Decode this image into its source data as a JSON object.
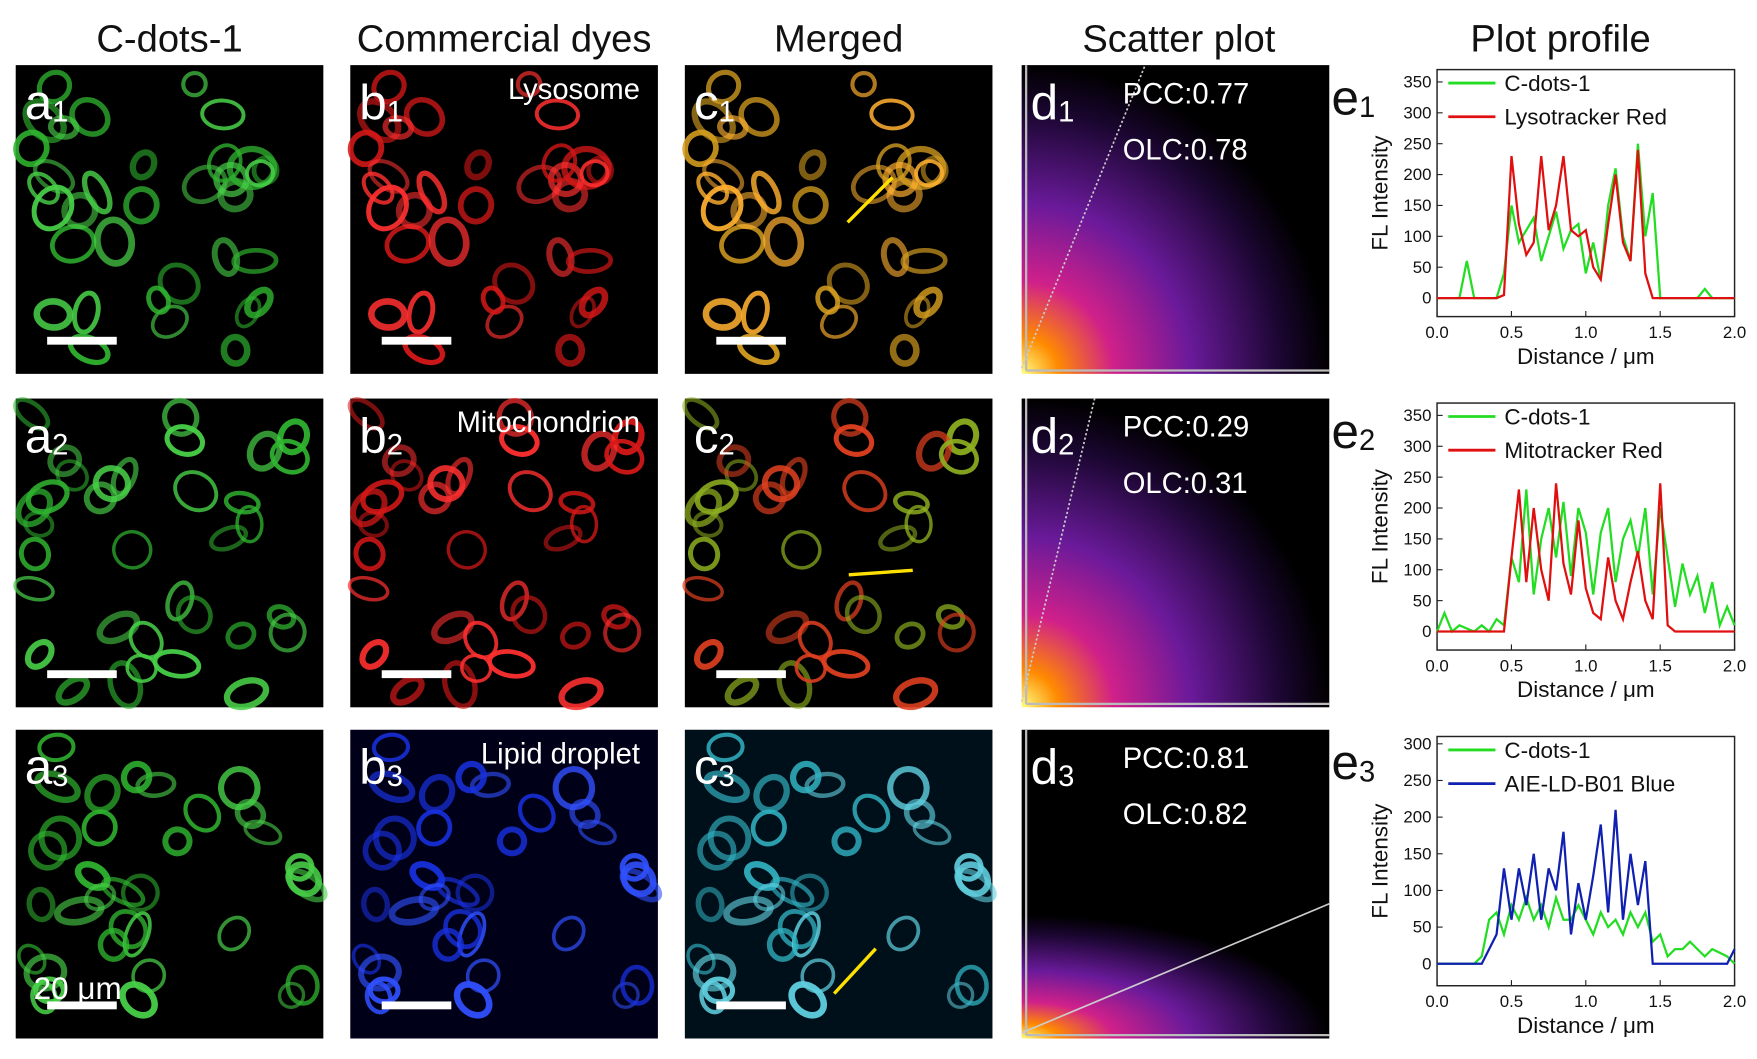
{
  "columns": [
    "C-dots-1",
    "Commercial dyes",
    "Merged",
    "Scatter plot",
    "Plot profile"
  ],
  "scale_bar": "20 μm",
  "rows": [
    {
      "labels": [
        [
          "a",
          "1"
        ],
        [
          "b",
          "1"
        ],
        [
          "c",
          "1"
        ],
        [
          "d",
          "1"
        ],
        [
          "e",
          "1"
        ]
      ],
      "organelle": "Lysosome",
      "pcc": "PCC:0.77",
      "olc": "OLC:0.78"
    },
    {
      "labels": [
        [
          "a",
          "2"
        ],
        [
          "b",
          "2"
        ],
        [
          "c",
          "2"
        ],
        [
          "d",
          "2"
        ],
        [
          "e",
          "2"
        ]
      ],
      "organelle": "Mitochondrion",
      "pcc": "PCC:0.29",
      "olc": "OLC:0.31"
    },
    {
      "labels": [
        [
          "a",
          "3"
        ],
        [
          "b",
          "3"
        ],
        [
          "c",
          "3"
        ],
        [
          "d",
          "3"
        ],
        [
          "e",
          "3"
        ]
      ],
      "organelle": "Lipid droplet",
      "pcc": "PCC:0.81",
      "olc": "OLC:0.82"
    }
  ],
  "chart_data": [
    {
      "type": "line",
      "xlabel": "Distance / μm",
      "ylabel": "FL Intensity",
      "legend": "upper left",
      "xlim": [
        0,
        2
      ],
      "ylim": [
        -30,
        370
      ],
      "xticks": [
        {
          "value": 0,
          "label": "0.0"
        },
        0.5,
        {
          "value": 1,
          "label": "1.0"
        },
        1.5,
        {
          "value": 2,
          "label": "2.0"
        }
      ],
      "yticks": [
        0,
        50,
        100,
        150,
        200,
        250,
        300,
        350
      ],
      "x": [
        0,
        0.05,
        0.1,
        0.15,
        0.2,
        0.25,
        0.3,
        0.35,
        0.4,
        0.45,
        0.5,
        0.55,
        0.6,
        0.65,
        0.7,
        0.75,
        0.8,
        0.85,
        0.9,
        0.95,
        1,
        1.05,
        1.1,
        1.15,
        1.2,
        1.25,
        1.3,
        1.35,
        1.4,
        1.45,
        1.5,
        1.55,
        1.6,
        1.65,
        1.7,
        1.75,
        1.8,
        1.85,
        1.9,
        1.95,
        2
      ],
      "series": [
        {
          "name": "C-dots-1",
          "color": "#22dd22",
          "values": [
            0,
            0,
            0,
            0,
            60,
            0,
            0,
            0,
            0,
            40,
            150,
            90,
            110,
            130,
            60,
            100,
            140,
            80,
            110,
            120,
            40,
            90,
            30,
            150,
            210,
            100,
            60,
            250,
            100,
            170,
            0,
            0,
            0,
            0,
            0,
            0,
            15,
            0,
            0,
            0,
            0
          ]
        },
        {
          "name": "Lysotracker Red",
          "color": "#e01010",
          "values": [
            0,
            0,
            0,
            0,
            0,
            0,
            0,
            0,
            0,
            5,
            230,
            120,
            70,
            90,
            230,
            110,
            150,
            230,
            110,
            100,
            110,
            50,
            30,
            120,
            200,
            90,
            60,
            240,
            40,
            0,
            0,
            0,
            0,
            0,
            0,
            0,
            0,
            0,
            0,
            0,
            0
          ]
        }
      ]
    },
    {
      "type": "line",
      "xlabel": "Distance / μm",
      "ylabel": "FL Intensity",
      "legend": "upper left",
      "xlim": [
        0,
        2
      ],
      "ylim": [
        -30,
        370
      ],
      "xticks": [
        {
          "value": 0,
          "label": "0.0"
        },
        0.5,
        {
          "value": 1,
          "label": "1.0"
        },
        1.5,
        {
          "value": 2,
          "label": "2.0"
        }
      ],
      "yticks": [
        0,
        50,
        100,
        150,
        200,
        250,
        300,
        350
      ],
      "x": [
        0,
        0.05,
        0.1,
        0.15,
        0.2,
        0.25,
        0.3,
        0.35,
        0.4,
        0.45,
        0.5,
        0.55,
        0.6,
        0.65,
        0.7,
        0.75,
        0.8,
        0.85,
        0.9,
        0.95,
        1,
        1.05,
        1.1,
        1.15,
        1.2,
        1.25,
        1.3,
        1.35,
        1.4,
        1.45,
        1.5,
        1.55,
        1.6,
        1.65,
        1.7,
        1.75,
        1.8,
        1.85,
        1.9,
        1.95,
        2
      ],
      "series": [
        {
          "name": "C-dots-1",
          "color": "#22dd22",
          "values": [
            0,
            30,
            0,
            10,
            5,
            0,
            10,
            0,
            20,
            10,
            120,
            80,
            230,
            60,
            150,
            200,
            120,
            210,
            90,
            200,
            160,
            60,
            160,
            200,
            80,
            150,
            180,
            120,
            200,
            60,
            200,
            120,
            40,
            110,
            60,
            90,
            30,
            80,
            10,
            40,
            10
          ]
        },
        {
          "name": "Mitotracker Red",
          "color": "#e01010",
          "values": [
            0,
            0,
            0,
            0,
            0,
            0,
            0,
            0,
            0,
            0,
            120,
            230,
            80,
            200,
            100,
            50,
            240,
            110,
            60,
            180,
            70,
            30,
            20,
            120,
            50,
            20,
            80,
            130,
            50,
            20,
            240,
            10,
            0,
            0,
            0,
            0,
            0,
            0,
            0,
            0,
            0
          ]
        }
      ]
    },
    {
      "type": "line",
      "xlabel": "Distance / μm",
      "ylabel": "FL Intensity",
      "legend": "upper left",
      "xlim": [
        0,
        2
      ],
      "ylim": [
        -30,
        310
      ],
      "xticks": [
        {
          "value": 0,
          "label": "0.0"
        },
        0.5,
        {
          "value": 1,
          "label": "1.0"
        },
        1.5,
        {
          "value": 2,
          "label": "2.0"
        }
      ],
      "yticks": [
        0,
        50,
        100,
        150,
        200,
        250,
        300
      ],
      "x": [
        0,
        0.05,
        0.1,
        0.15,
        0.2,
        0.25,
        0.3,
        0.35,
        0.4,
        0.45,
        0.5,
        0.55,
        0.6,
        0.65,
        0.7,
        0.75,
        0.8,
        0.85,
        0.9,
        0.95,
        1,
        1.05,
        1.1,
        1.15,
        1.2,
        1.25,
        1.3,
        1.35,
        1.4,
        1.45,
        1.5,
        1.55,
        1.6,
        1.65,
        1.7,
        1.75,
        1.8,
        1.85,
        1.9,
        1.95,
        2
      ],
      "series": [
        {
          "name": "C-dots-1",
          "color": "#22dd22",
          "values": [
            0,
            0,
            0,
            0,
            0,
            0,
            10,
            60,
            70,
            40,
            80,
            60,
            90,
            60,
            80,
            50,
            90,
            60,
            60,
            80,
            60,
            40,
            70,
            50,
            60,
            40,
            70,
            50,
            70,
            30,
            40,
            10,
            20,
            20,
            30,
            20,
            10,
            20,
            15,
            10,
            0
          ]
        },
        {
          "name": "AIE-LD-B01 Blue",
          "color": "#1020b0",
          "values": [
            0,
            0,
            0,
            0,
            0,
            0,
            0,
            20,
            40,
            130,
            60,
            130,
            80,
            150,
            60,
            130,
            100,
            180,
            40,
            110,
            60,
            120,
            190,
            70,
            210,
            60,
            150,
            80,
            140,
            0,
            0,
            0,
            0,
            0,
            0,
            0,
            0,
            0,
            0,
            0,
            20
          ]
        }
      ]
    }
  ]
}
